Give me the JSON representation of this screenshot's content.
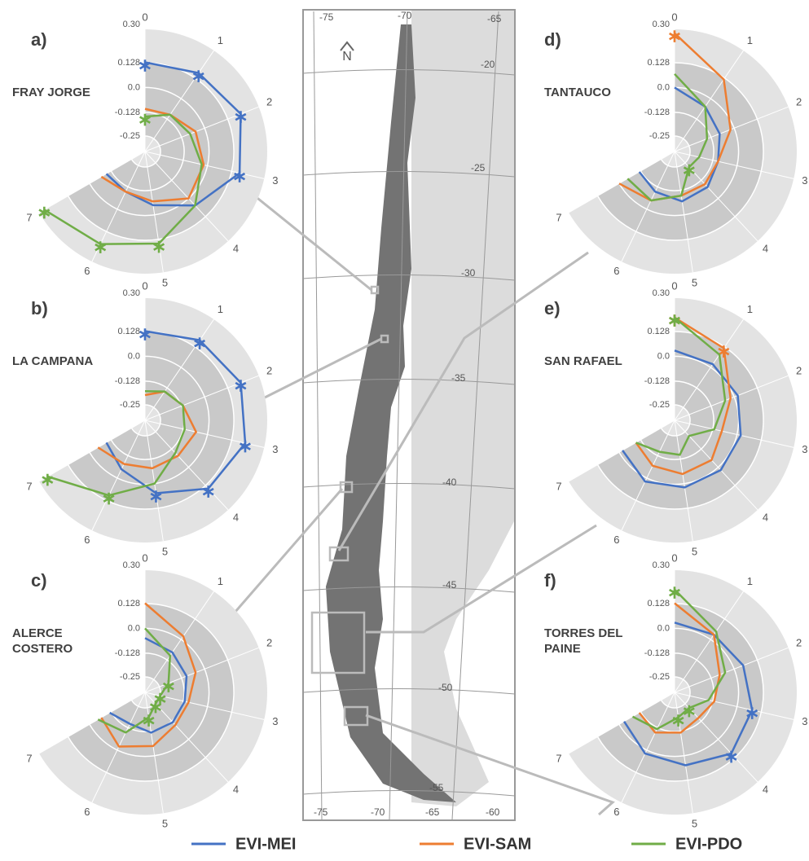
{
  "chart_data": [
    {
      "type": "radar",
      "panel": "a)",
      "title": "FRAY JORGE",
      "categories": [
        "0",
        "1",
        "2",
        "3",
        "4",
        "5",
        "6",
        "7"
      ],
      "rlim": [
        -0.33,
        0.3
      ],
      "rticks": [
        {
          "value": 0.3,
          "label": "0.30"
        },
        0.128,
        {
          "value": 0,
          "label": "0.0"
        },
        -0.128,
        -0.25
      ],
      "series": [
        {
          "name": "EVI-MEI",
          "color": "#4472c4",
          "values": [
            0.13,
            0.16,
            0.2,
            0.17,
            0.05,
            -0.05,
            -0.1,
            -0.1
          ],
          "significant": [
            0,
            1,
            2,
            3
          ]
        },
        {
          "name": "EVI-SAM",
          "color": "#ed7d31",
          "values": [
            -0.11,
            -0.1,
            -0.05,
            -0.02,
            0.0,
            -0.07,
            -0.1,
            -0.07
          ],
          "significant": []
        },
        {
          "name": "EVI-PDO",
          "color": "#70ad47",
          "values": [
            -0.15,
            -0.1,
            -0.08,
            -0.03,
            0.05,
            0.15,
            0.2,
            0.27
          ],
          "significant": [
            0,
            5,
            6,
            7
          ]
        }
      ]
    },
    {
      "type": "radar",
      "panel": "b)",
      "title": "LA CAMPANA",
      "categories": [
        "0",
        "1",
        "2",
        "3",
        "4",
        "5",
        "6",
        "7"
      ],
      "rlim": [
        -0.33,
        0.3
      ],
      "rticks": [
        {
          "value": 0.3,
          "label": "0.30"
        },
        0.128,
        {
          "value": 0,
          "label": "0.0"
        },
        -0.128,
        -0.25
      ],
      "series": [
        {
          "name": "EVI-MEI",
          "color": "#4472c4",
          "values": [
            0.13,
            0.17,
            0.2,
            0.2,
            0.15,
            0.05,
            -0.05,
            -0.1
          ],
          "significant": [
            0,
            1,
            2,
            3,
            4,
            5
          ]
        },
        {
          "name": "EVI-SAM",
          "color": "#ed7d31",
          "values": [
            -0.2,
            -0.15,
            -0.12,
            -0.06,
            -0.08,
            -0.08,
            -0.08,
            -0.05
          ],
          "significant": []
        },
        {
          "name": "EVI-PDO",
          "color": "#70ad47",
          "values": [
            -0.18,
            -0.15,
            -0.12,
            -0.12,
            -0.1,
            0.0,
            0.1,
            0.25
          ],
          "significant": [
            6,
            7
          ]
        }
      ]
    },
    {
      "type": "radar",
      "panel": "c)",
      "title": "ALERCE COSTERO",
      "categories": [
        "0",
        "1",
        "2",
        "3",
        "4",
        "5",
        "6",
        "7"
      ],
      "rlim": [
        -0.33,
        0.3
      ],
      "rticks": [
        {
          "value": 0.3,
          "label": "0.30"
        },
        0.128,
        {
          "value": 0,
          "label": "0.0"
        },
        -0.128,
        -0.25
      ],
      "series": [
        {
          "name": "EVI-MEI",
          "color": "#4472c4",
          "values": [
            -0.05,
            -0.08,
            -0.1,
            -0.12,
            -0.12,
            -0.12,
            -0.15,
            -0.12
          ],
          "significant": []
        },
        {
          "name": "EVI-SAM",
          "color": "#ed7d31",
          "values": [
            0.13,
            0.02,
            -0.05,
            -0.1,
            -0.1,
            -0.05,
            -0.02,
            -0.07
          ],
          "significant": []
        },
        {
          "name": "EVI-PDO",
          "color": "#70ad47",
          "values": [
            0.0,
            -0.1,
            -0.2,
            -0.25,
            -0.25,
            -0.2,
            -0.1,
            -0.05
          ],
          "significant": [
            2,
            3,
            4,
            5
          ]
        }
      ]
    },
    {
      "type": "radar",
      "panel": "d)",
      "title": "TANTAUCO",
      "categories": [
        "0",
        "1",
        "2",
        "3",
        "4",
        "5",
        "6",
        "7"
      ],
      "rlim": [
        -0.33,
        0.3
      ],
      "rticks": [
        {
          "value": 0.3,
          "label": "0.30"
        },
        0.128,
        {
          "value": 0,
          "label": "0.0"
        },
        -0.128,
        -0.25
      ],
      "series": [
        {
          "name": "EVI-MEI",
          "color": "#4472c4",
          "values": [
            0.0,
            -0.05,
            -0.08,
            -0.1,
            -0.08,
            -0.07,
            -0.1,
            -0.12
          ],
          "significant": []
        },
        {
          "name": "EVI-SAM",
          "color": "#ed7d31",
          "values": [
            0.28,
            0.12,
            -0.02,
            -0.1,
            -0.1,
            -0.1,
            -0.05,
            0.0
          ],
          "significant": [
            0
          ]
        },
        {
          "name": "EVI-PDO",
          "color": "#70ad47",
          "values": [
            0.07,
            -0.05,
            -0.15,
            -0.2,
            -0.22,
            -0.1,
            -0.05,
            -0.05
          ],
          "significant": [
            4
          ]
        }
      ]
    },
    {
      "type": "radar",
      "panel": "e)",
      "title": "SAN RAFAEL",
      "categories": [
        "0",
        "1",
        "2",
        "3",
        "4",
        "5",
        "6",
        "7"
      ],
      "rlim": [
        -0.33,
        0.3
      ],
      "rticks": [
        {
          "value": 0.3,
          "label": "0.30"
        },
        0.128,
        {
          "value": 0,
          "label": "0.0"
        },
        -0.128,
        -0.25
      ],
      "series": [
        {
          "name": "EVI-MEI",
          "color": "#4472c4",
          "values": [
            0.03,
            0.02,
            0.02,
            0.02,
            0.02,
            0.02,
            0.02,
            -0.02
          ],
          "significant": []
        },
        {
          "name": "EVI-SAM",
          "color": "#ed7d31",
          "values": [
            0.2,
            0.12,
            -0.02,
            -0.08,
            -0.05,
            -0.05,
            -0.07,
            -0.1
          ],
          "significant": [
            0,
            1
          ]
        },
        {
          "name": "EVI-PDO",
          "color": "#70ad47",
          "values": [
            0.2,
            0.08,
            -0.05,
            -0.12,
            -0.22,
            -0.15,
            -0.15,
            -0.1
          ],
          "significant": [
            0
          ]
        }
      ]
    },
    {
      "type": "radar",
      "panel": "f)",
      "title": "TORRES DEL PAINE",
      "categories": [
        "0",
        "1",
        "2",
        "3",
        "4",
        "5",
        "6",
        "7"
      ],
      "rlim": [
        -0.33,
        0.3
      ],
      "rticks": [
        {
          "value": 0.3,
          "label": "0.30"
        },
        0.128,
        {
          "value": 0,
          "label": "0.0"
        },
        -0.128,
        -0.25
      ],
      "series": [
        {
          "name": "EVI-MEI",
          "color": "#4472c4",
          "values": [
            0.03,
            0.03,
            0.05,
            0.08,
            0.1,
            0.05,
            0.02,
            -0.03
          ],
          "significant": [
            3,
            4
          ]
        },
        {
          "name": "EVI-SAM",
          "color": "#ed7d31",
          "values": [
            0.13,
            0.03,
            -0.08,
            -0.12,
            -0.15,
            -0.12,
            -0.1,
            -0.12
          ],
          "significant": []
        },
        {
          "name": "EVI-PDO",
          "color": "#70ad47",
          "values": [
            0.2,
            0.05,
            -0.05,
            -0.15,
            -0.22,
            -0.2,
            -0.12,
            -0.08
          ],
          "significant": [
            0,
            4,
            5
          ]
        }
      ]
    }
  ],
  "map": {
    "north": "N",
    "lon_top": [
      "-75",
      "-70",
      "-65"
    ],
    "lon_bottom": [
      "-75",
      "-70",
      "-65",
      "-60"
    ],
    "lat": [
      "-20",
      "-25",
      "-30",
      "-35",
      "-40",
      "-45",
      "-50",
      "-55"
    ]
  }
}
